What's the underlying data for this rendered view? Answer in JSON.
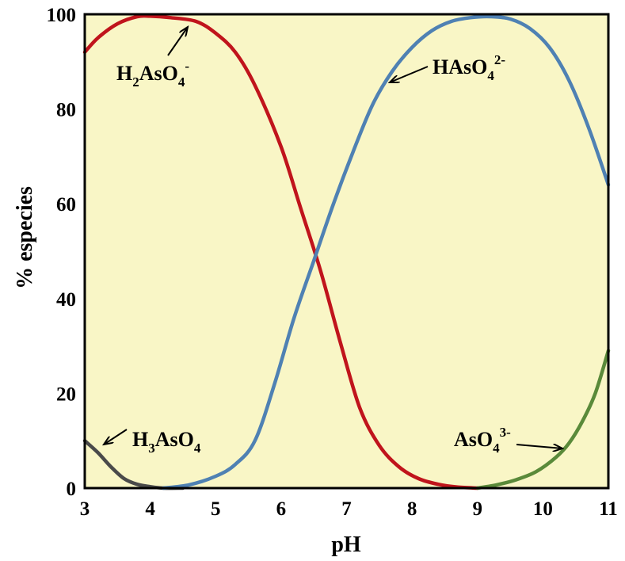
{
  "chart_data": {
    "type": "line",
    "xlabel": "pH",
    "ylabel": "% especies",
    "xlim": [
      3,
      11
    ],
    "ylim": [
      0,
      100
    ],
    "xticks": [
      "3",
      "4",
      "5",
      "6",
      "7",
      "8",
      "9",
      "10",
      "11"
    ],
    "yticks": [
      "0",
      "20",
      "40",
      "60",
      "80",
      "100"
    ],
    "grid": false,
    "legend": "none",
    "background_color": "#f9f6c6",
    "series": [
      {
        "key": "h3aso4",
        "color": "#4a4a4a",
        "label": {
          "base": "H",
          "sub1": "3",
          "mid": "AsO",
          "sub2": "4",
          "sup": ""
        },
        "x": [
          3.0,
          3.2,
          3.4,
          3.6,
          3.8,
          4.0,
          4.2,
          4.5
        ],
        "y": [
          10,
          7.5,
          4.5,
          2,
          0.8,
          0.3,
          0,
          0
        ]
      },
      {
        "key": "h2aso4",
        "color": "#c0141c",
        "label": {
          "base": "H",
          "sub1": "2",
          "mid": "AsO",
          "sub2": "4",
          "sup": "-"
        },
        "x": [
          3.0,
          3.2,
          3.5,
          3.8,
          4.0,
          4.3,
          4.7,
          5.0,
          5.3,
          5.6,
          6.0,
          6.3,
          6.6,
          6.9,
          7.2,
          7.5,
          7.8,
          8.1,
          8.4,
          8.7,
          9.0
        ],
        "y": [
          92,
          95,
          98,
          99.5,
          99.6,
          99.3,
          98.5,
          96,
          92,
          85,
          72,
          59,
          46,
          31,
          17,
          9,
          4.5,
          2,
          0.8,
          0.2,
          0
        ]
      },
      {
        "key": "haso4",
        "color": "#4f81b3",
        "label": {
          "base": "HAsO",
          "sub1": "",
          "mid": "",
          "sub2": "4",
          "sup": "2-"
        },
        "x": [
          4.2,
          4.6,
          5.0,
          5.3,
          5.6,
          5.9,
          6.2,
          6.5,
          6.8,
          7.1,
          7.4,
          7.7,
          8.0,
          8.3,
          8.6,
          8.9,
          9.2,
          9.5,
          9.8,
          10.1,
          10.4,
          10.7,
          11.0
        ],
        "y": [
          0,
          0.7,
          2.5,
          5,
          10,
          22,
          36,
          48,
          60,
          71,
          81,
          88,
          93,
          96.5,
          98.5,
          99.3,
          99.5,
          99,
          97,
          93,
          86,
          76,
          64
        ]
      },
      {
        "key": "aso4",
        "color": "#5a8a3a",
        "label": {
          "base": "AsO",
          "sub1": "",
          "mid": "",
          "sub2": "4",
          "sup": "3-"
        },
        "x": [
          9.0,
          9.3,
          9.6,
          9.9,
          10.2,
          10.4,
          10.6,
          10.8,
          11.0
        ],
        "y": [
          0,
          0.7,
          1.8,
          3.5,
          6.5,
          9.5,
          14,
          20,
          29
        ]
      }
    ]
  }
}
